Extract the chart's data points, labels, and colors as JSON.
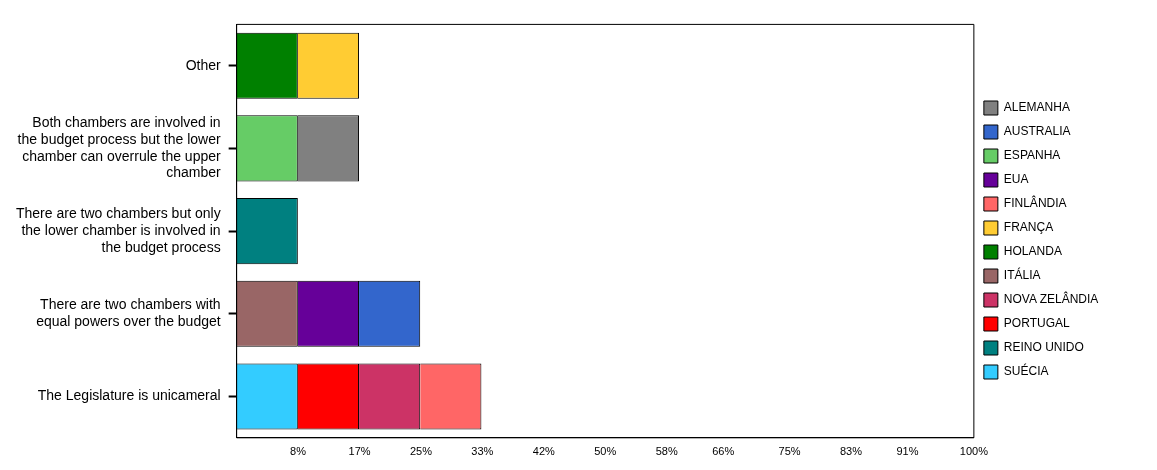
{
  "chart_data": {
    "type": "bar",
    "orientation": "horizontal",
    "stacked": true,
    "categories": [
      "Other",
      "Both chambers are involved in the budget process but the lower chamber can overrule the upper chamber",
      "There are two chambers but only the lower chamber is involved in the budget process",
      "There are two chambers with equal powers over the budget",
      "The Legislature is unicameral"
    ],
    "series": [
      {
        "name": "SUÉCIA",
        "color": "#33ccff",
        "values": [
          null,
          null,
          null,
          null,
          8.3
        ]
      },
      {
        "name": "ITÁLIA",
        "color": "#996666",
        "values": [
          null,
          null,
          null,
          8.3,
          null
        ]
      },
      {
        "name": "REINO UNIDO",
        "color": "#008080",
        "values": [
          null,
          null,
          8.3,
          null,
          null
        ]
      },
      {
        "name": "ESPANHA",
        "color": "#66cc66",
        "values": [
          null,
          8.3,
          null,
          null,
          null
        ]
      },
      {
        "name": "HOLANDA",
        "color": "#008000",
        "values": [
          8.3,
          null,
          null,
          null,
          null
        ]
      },
      {
        "name": "PORTUGAL",
        "color": "#ff0000",
        "values": [
          null,
          null,
          null,
          null,
          8.3
        ]
      },
      {
        "name": "EUA",
        "color": "#660099",
        "values": [
          null,
          null,
          null,
          8.3,
          null
        ]
      },
      {
        "name": "ALEMANHA",
        "color": "#808080",
        "values": [
          null,
          8.3,
          null,
          null,
          null
        ]
      },
      {
        "name": "FRANÇA",
        "color": "#ffcc33",
        "values": [
          8.3,
          null,
          null,
          null,
          null
        ]
      },
      {
        "name": "NOVA ZELÂNDIA",
        "color": "#cc3366",
        "values": [
          null,
          null,
          null,
          null,
          8.3
        ]
      },
      {
        "name": "AUSTRALIA",
        "color": "#3366cc",
        "values": [
          null,
          null,
          null,
          8.3,
          null
        ]
      },
      {
        "name": "FINLÂNDIA",
        "color": "#ff6666",
        "values": [
          null,
          null,
          null,
          null,
          8.3
        ]
      }
    ],
    "xlim": [
      0,
      100
    ],
    "xticks": [
      {
        "value": 8.33,
        "label": "8%"
      },
      {
        "value": 16.67,
        "label": "17%"
      },
      {
        "value": 25,
        "label": "25%"
      },
      {
        "value": 33.33,
        "label": "33%"
      },
      {
        "value": 41.67,
        "label": "42%"
      },
      {
        "value": 50,
        "label": "50%"
      },
      {
        "value": 58.33,
        "label": "58%"
      },
      {
        "value": 66,
        "label": "66%"
      },
      {
        "value": 75,
        "label": "75%"
      },
      {
        "value": 83.33,
        "label": "83%"
      },
      {
        "value": 91,
        "label": "91%"
      },
      {
        "value": 100,
        "label": "100%"
      }
    ],
    "grid": false,
    "legend": "right"
  }
}
